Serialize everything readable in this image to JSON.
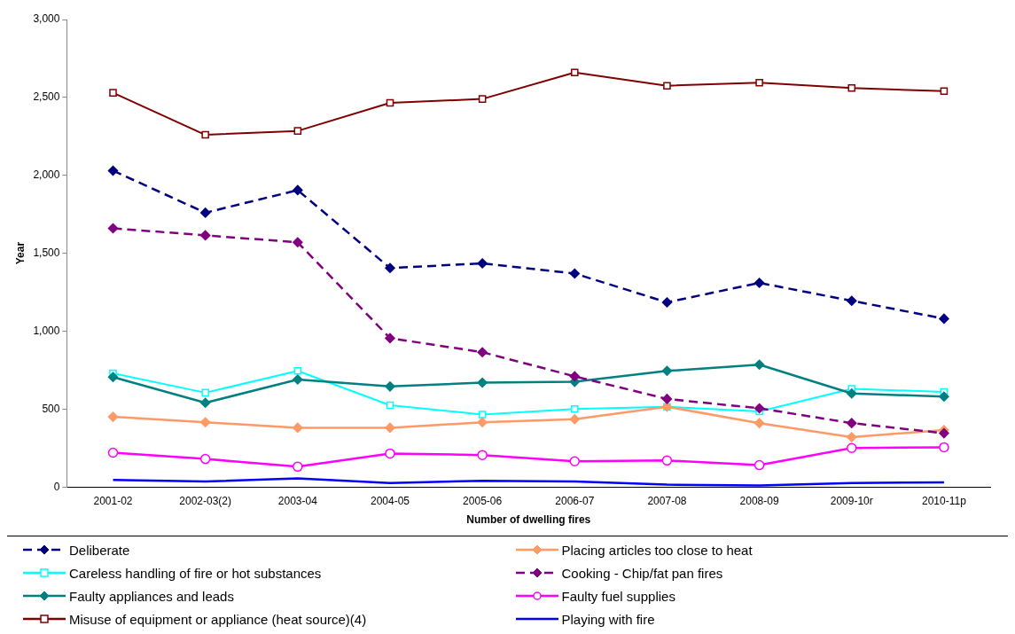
{
  "chart_data": {
    "type": "line",
    "xlabel": "Number of dwelling fires",
    "ylabel": "Year",
    "categories": [
      "2001-02",
      "2002-03(2)",
      "2003-04",
      "2004-05",
      "2005-06",
      "2006-07",
      "2007-08",
      "2008-09",
      "2009-10r",
      "2010-11p"
    ],
    "ylim": [
      0,
      3000
    ],
    "yticks": [
      {
        "value": 0,
        "label": "0"
      },
      {
        "value": 500,
        "label": "500"
      },
      {
        "value": 1000,
        "label": "1,000"
      },
      {
        "value": 1500,
        "label": "1,500"
      },
      {
        "value": 2000,
        "label": "2,000"
      },
      {
        "value": 2500,
        "label": "2,500"
      },
      {
        "value": 3000,
        "label": "3,000"
      }
    ],
    "grid": false,
    "legend": "bottom",
    "series": [
      {
        "name": "Deliberate",
        "color": "#000080",
        "marker": "diamond",
        "line_style": "dashed",
        "values": [
          2030,
          1760,
          1905,
          1405,
          1435,
          1370,
          1185,
          1310,
          1195,
          1080
        ]
      },
      {
        "name": "Careless handling of fire or hot substances",
        "color": "#00ffff",
        "marker": "square",
        "line_style": "solid",
        "values": [
          730,
          605,
          745,
          525,
          465,
          500,
          515,
          485,
          630,
          610
        ]
      },
      {
        "name": "Faulty appliances and leads",
        "color": "#008080",
        "marker": "diamond",
        "line_style": "solid",
        "values": [
          705,
          540,
          690,
          645,
          670,
          675,
          745,
          785,
          600,
          580
        ]
      },
      {
        "name": "Misuse of equipment or appliance (heat source)(4)",
        "color": "#800000",
        "marker": "square",
        "line_style": "solid",
        "values": [
          2530,
          2260,
          2285,
          2465,
          2490,
          2660,
          2575,
          2595,
          2560,
          2540
        ]
      },
      {
        "name": "Placing articles too close to heat",
        "color": "#ff9966",
        "marker": "diamond",
        "line_style": "solid",
        "values": [
          450,
          415,
          380,
          380,
          415,
          435,
          515,
          410,
          320,
          365
        ]
      },
      {
        "name": "Cooking - Chip/fat pan fires",
        "color": "#800080",
        "marker": "diamond",
        "line_style": "dashed",
        "values": [
          1660,
          1615,
          1570,
          955,
          865,
          710,
          565,
          505,
          410,
          345
        ]
      },
      {
        "name": "Faulty fuel supplies",
        "color": "#ff00ff",
        "marker": "circle",
        "line_style": "solid",
        "values": [
          220,
          180,
          130,
          215,
          205,
          165,
          170,
          140,
          250,
          255
        ]
      },
      {
        "name": "Playing with fire",
        "color": "#0000ff",
        "marker": "none",
        "line_style": "solid",
        "values": [
          45,
          35,
          55,
          25,
          40,
          35,
          15,
          10,
          25,
          30
        ]
      }
    ]
  }
}
